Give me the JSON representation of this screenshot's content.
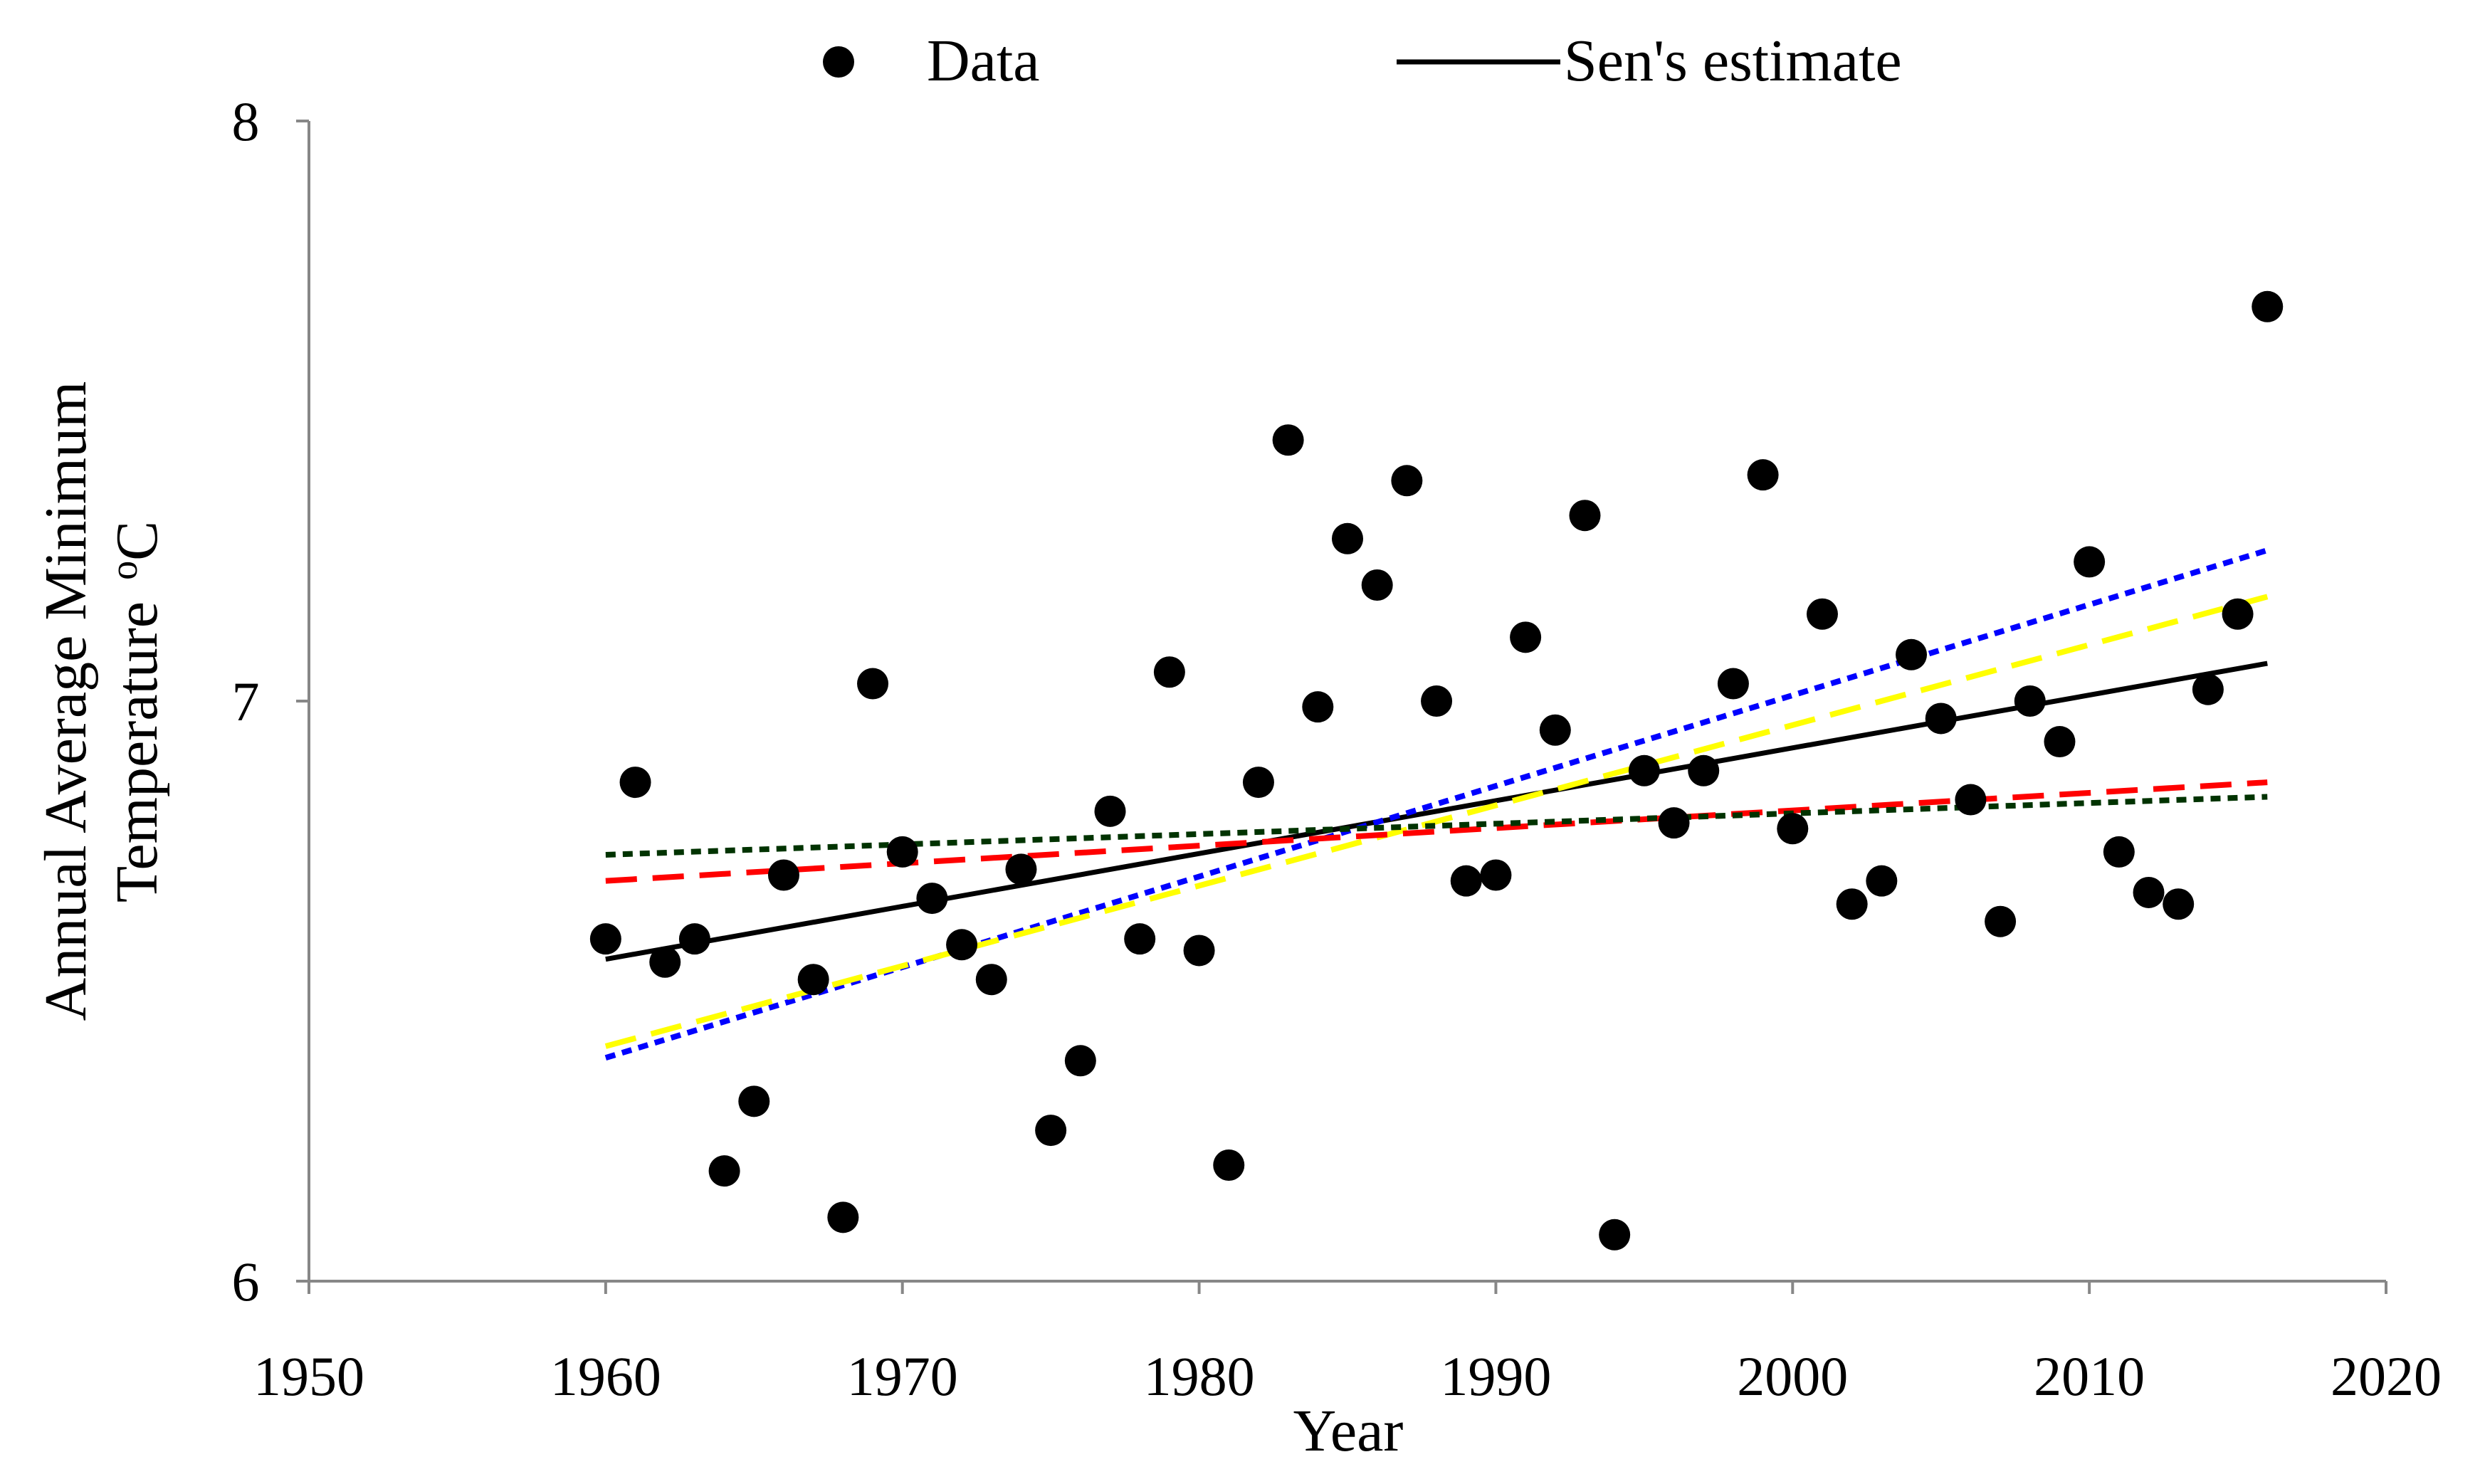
{
  "chart_data": {
    "type": "scatter",
    "title": "",
    "xlabel": "Year",
    "ylabel_line1": "Annual Average Minimum",
    "ylabel_line2_text": "Temperature",
    "ylabel_line2_degree": "o",
    "ylabel_line2_unit": "C",
    "xlim": [
      1950,
      2020
    ],
    "ylim": [
      6,
      8
    ],
    "x_ticks": [
      1950,
      1960,
      1970,
      1980,
      1990,
      2000,
      2010,
      2020
    ],
    "x_tick_labels": [
      "1950",
      "1960",
      "1970",
      "1980",
      "1990",
      "2000",
      "2010",
      "2020"
    ],
    "y_ticks": [
      6,
      7,
      8
    ],
    "y_tick_labels": [
      "6",
      "7",
      "8"
    ],
    "grid": false,
    "legend_position": "top",
    "legend": [
      {
        "label": "Data",
        "kind": "marker"
      },
      {
        "label": "Sen's estimate",
        "kind": "line"
      }
    ],
    "points": {
      "name": "Data",
      "x": [
        1960,
        1961,
        1962,
        1963,
        1964,
        1965,
        1966,
        1967,
        1968,
        1969,
        1970,
        1971,
        1972,
        1973,
        1974,
        1975,
        1976,
        1977,
        1978,
        1979,
        1980,
        1981,
        1982,
        1983,
        1984,
        1985,
        1986,
        1987,
        1988,
        1989,
        1990,
        1991,
        1992,
        1993,
        1994,
        1995,
        1996,
        1997,
        1998,
        1999,
        2000,
        2001,
        2002,
        2003,
        2004,
        2005,
        2006,
        2007,
        2008,
        2009,
        2010,
        2011,
        2012,
        2013,
        2014,
        2015,
        2016
      ],
      "y": [
        6.59,
        6.86,
        6.55,
        6.59,
        6.19,
        6.31,
        6.7,
        6.52,
        6.11,
        7.03,
        6.74,
        6.66,
        6.58,
        6.52,
        6.71,
        6.26,
        6.38,
        6.81,
        6.59,
        7.05,
        6.57,
        6.2,
        6.86,
        7.45,
        6.99,
        7.28,
        7.2,
        7.38,
        7.0,
        6.69,
        6.7,
        7.11,
        6.95,
        7.32,
        6.08,
        6.88,
        6.79,
        6.88,
        7.03,
        7.39,
        6.78,
        7.15,
        6.65,
        6.69,
        7.08,
        6.97,
        6.83,
        6.62,
        7.0,
        6.93,
        7.24,
        6.74,
        6.67,
        6.65,
        7.02,
        7.15,
        7.68
      ],
      "color": "#000000"
    },
    "lines": [
      {
        "name": "Sen's estimate",
        "x": [
          1960,
          2016
        ],
        "y": [
          6.555,
          7.065
        ],
        "color": "#000000",
        "style": "solid"
      },
      {
        "name": "blue dotted",
        "x": [
          1960,
          2016
        ],
        "y": [
          6.385,
          7.26
        ],
        "color": "#0000ff",
        "style": "dotted"
      },
      {
        "name": "yellow dashed",
        "x": [
          1960,
          2016
        ],
        "y": [
          6.405,
          7.18
        ],
        "color": "#ffff00",
        "style": "dashed"
      },
      {
        "name": "red dashed",
        "x": [
          1960,
          2016
        ],
        "y": [
          6.69,
          6.86
        ],
        "color": "#ff0000",
        "style": "dashed"
      },
      {
        "name": "dark green dotted",
        "x": [
          1960,
          2016
        ],
        "y": [
          6.735,
          6.835
        ],
        "color": "#003300",
        "style": "dotted"
      }
    ]
  }
}
